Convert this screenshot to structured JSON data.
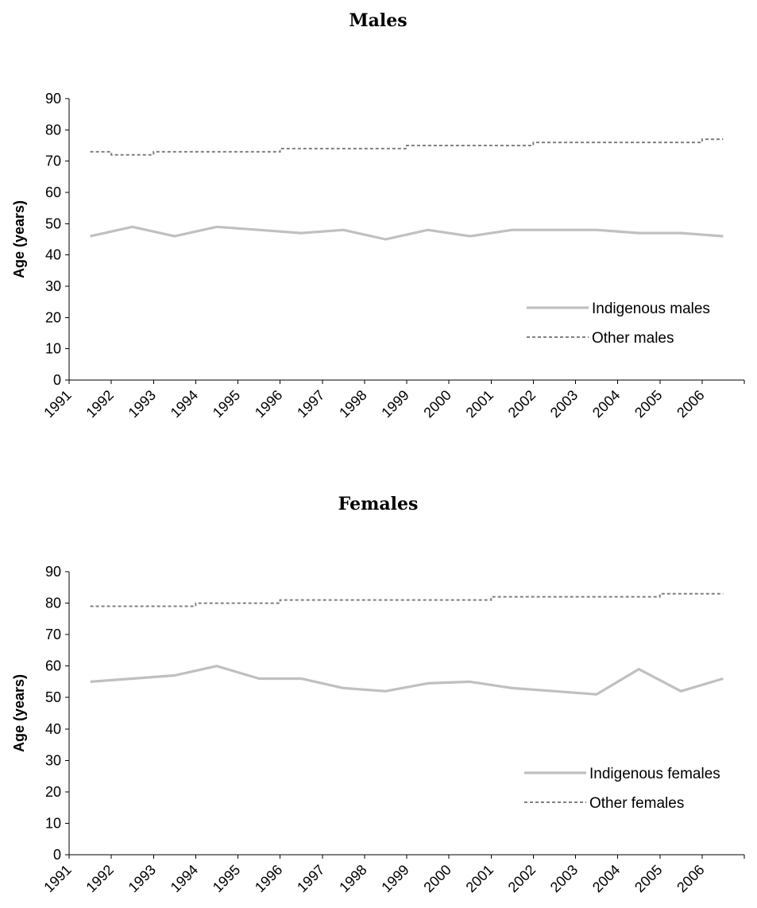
{
  "chart_data": [
    {
      "type": "line",
      "title": "Males",
      "xlabel": "",
      "ylabel": "Age (years)",
      "ylim": [
        0,
        90
      ],
      "yticks": [
        "0",
        "10",
        "20",
        "30",
        "40",
        "50",
        "60",
        "70",
        "80",
        "90"
      ],
      "categories": [
        "1991",
        "1992",
        "1993",
        "1994",
        "1995",
        "1996",
        "1997",
        "1998",
        "1999",
        "2000",
        "2001",
        "2002",
        "2003",
        "2004",
        "2005",
        "2006"
      ],
      "grid": false,
      "legend_position": "bottom-right",
      "series": [
        {
          "name": "Indigenous males",
          "style": "solid",
          "color": "#c0c0c0",
          "values": [
            46,
            49,
            46,
            49,
            48,
            47,
            48,
            45,
            48,
            46,
            48,
            48,
            48,
            47,
            47,
            46
          ]
        },
        {
          "name": "Other males",
          "style": "dashed",
          "color": "#808080",
          "values": [
            73,
            72,
            73,
            73,
            73,
            74,
            74,
            74,
            75,
            75,
            75,
            76,
            76,
            76,
            76,
            77
          ]
        }
      ]
    },
    {
      "type": "line",
      "title": "Females",
      "xlabel": "",
      "ylabel": "Age (years)",
      "ylim": [
        0,
        90
      ],
      "yticks": [
        "0",
        "10",
        "20",
        "30",
        "40",
        "50",
        "60",
        "70",
        "80",
        "90"
      ],
      "categories": [
        "1991",
        "1992",
        "1993",
        "1994",
        "1995",
        "1996",
        "1997",
        "1998",
        "1999",
        "2000",
        "2001",
        "2002",
        "2003",
        "2004",
        "2005",
        "2006"
      ],
      "grid": false,
      "legend_position": "bottom-right",
      "series": [
        {
          "name": "Indigenous females",
          "style": "solid",
          "color": "#c0c0c0",
          "values": [
            55,
            56,
            57,
            60,
            56,
            56,
            53,
            52,
            54.5,
            55,
            53,
            52,
            51,
            59,
            52,
            56
          ]
        },
        {
          "name": "Other females",
          "style": "dashed",
          "color": "#808080",
          "values": [
            79,
            79,
            79,
            80,
            80,
            81,
            81,
            81,
            81,
            81,
            82,
            82,
            82,
            82,
            83,
            83
          ]
        }
      ]
    }
  ]
}
